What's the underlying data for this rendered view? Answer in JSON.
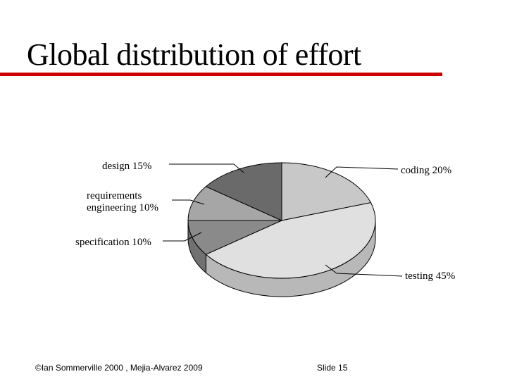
{
  "slide": {
    "title": "Global distribution of effort",
    "accent_color": "#cc0000",
    "footer_left": "©Ian Sommerville 2000 , Mejia-Alvarez 2009",
    "footer_right": "Slide  15"
  },
  "chart_data": {
    "type": "pie",
    "style": "3d",
    "title": "",
    "slices": [
      {
        "label": "coding 20%",
        "value": 20,
        "color": "#c8c8c8"
      },
      {
        "label": "testing 45%",
        "value": 45,
        "color": "#e0e0e0"
      },
      {
        "label": "specification 10%",
        "value": 10,
        "color": "#8a8a8a"
      },
      {
        "label": "requirements engineering 10%",
        "value": 10,
        "color": "#a6a6a6"
      },
      {
        "label": "design 15%",
        "value": 15,
        "color": "#6a6a6a"
      }
    ]
  }
}
